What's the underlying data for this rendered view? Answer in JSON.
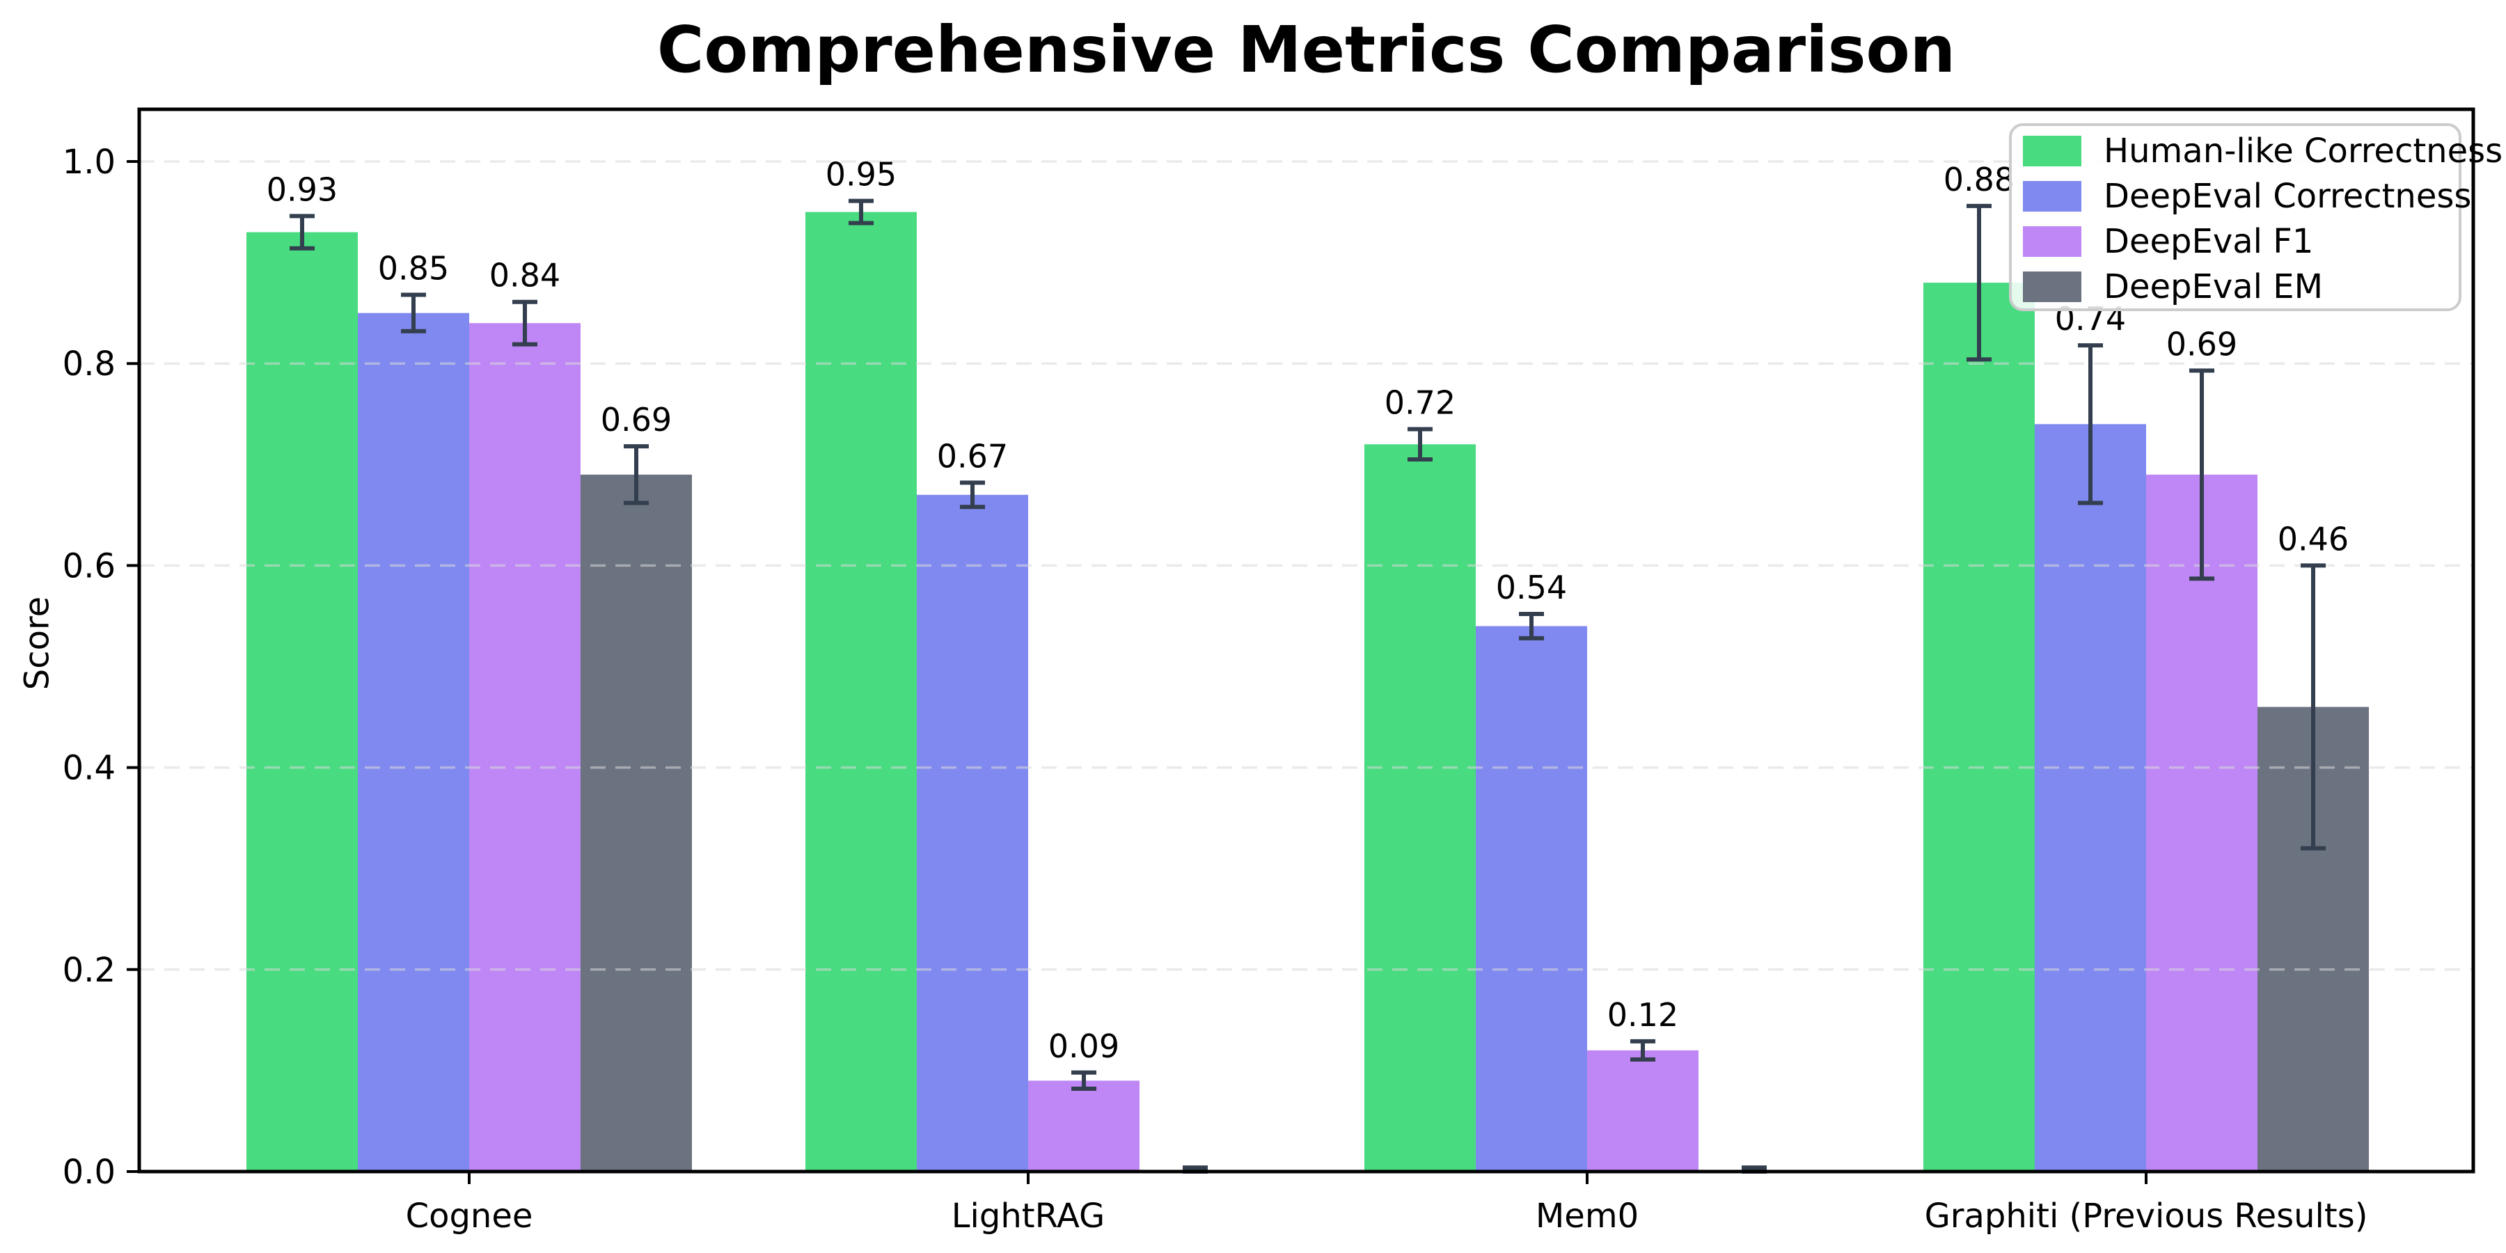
{
  "chart_data": {
    "type": "bar",
    "title": "Comprehensive Metrics Comparison",
    "ylabel": "Score",
    "xlabel": "",
    "categories": [
      "Cognee",
      "LightRAG",
      "Mem0",
      "Graphiti (Previous Results)"
    ],
    "series": [
      {
        "name": "Human-like Correctness",
        "color": "#48db80",
        "values": [
          0.93,
          0.95,
          0.72,
          0.88
        ],
        "errors": [
          0.016,
          0.011,
          0.015,
          0.076
        ]
      },
      {
        "name": "DeepEval Correctness",
        "color": "#8089ef",
        "values": [
          0.85,
          0.67,
          0.54,
          0.74
        ],
        "errors": [
          0.018,
          0.012,
          0.012,
          0.078
        ]
      },
      {
        "name": "DeepEval F1",
        "color": "#be87f5",
        "values": [
          0.84,
          0.09,
          0.12,
          0.69
        ],
        "errors": [
          0.021,
          0.008,
          0.009,
          0.103
        ]
      },
      {
        "name": "DeepEval EM",
        "color": "#6b7280",
        "values": [
          0.69,
          0.0,
          0.0,
          0.46
        ],
        "errors": [
          0.028,
          0.004,
          0.004,
          0.14
        ]
      }
    ],
    "value_label_format": "2dp",
    "hide_zero_labels": true,
    "yticks": [
      {
        "value": 0.0,
        "label": "0.0"
      },
      {
        "value": 0.2,
        "label": "0.2"
      },
      {
        "value": 0.4,
        "label": "0.4"
      },
      {
        "value": 0.6,
        "label": "0.6"
      },
      {
        "value": 0.8,
        "label": "0.8"
      },
      {
        "value": 1.0,
        "label": "1.0"
      }
    ],
    "ylim": [
      0,
      1.05
    ],
    "grid": {
      "style": "dashed",
      "color": "#d8d8d8",
      "overlay_opacity": 0.55
    },
    "legend": {
      "position": "upper right",
      "labels": [
        "Human-like Correctness",
        "DeepEval Correctness",
        "DeepEval F1",
        "DeepEval EM"
      ]
    },
    "errorbar_color": "#333e4e",
    "spine_color": "#000000",
    "text_color": "#000000"
  }
}
